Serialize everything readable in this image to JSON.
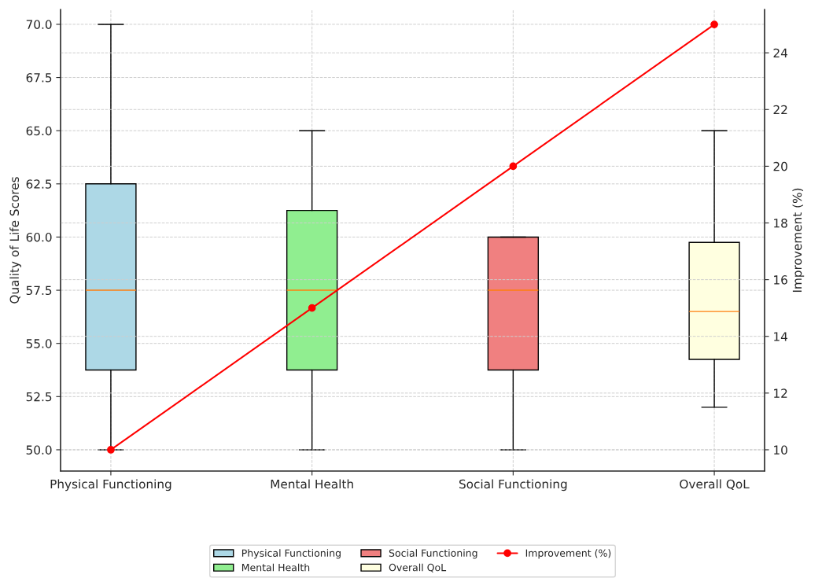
{
  "chart_data": {
    "type": "box",
    "categories": [
      "Physical Functioning",
      "Mental Health",
      "Social Functioning",
      "Overall QoL"
    ],
    "ylabel": "Quality of Life Scores",
    "y2label": "Improvement (%)",
    "ylim": [
      49.0,
      70.7
    ],
    "yticks": [
      {
        "value": 50,
        "label": "50.0"
      },
      52.5,
      {
        "value": 55,
        "label": "55.0"
      },
      57.5,
      {
        "value": 60,
        "label": "60.0"
      },
      62.5,
      {
        "value": 65,
        "label": "65.0"
      },
      67.5,
      {
        "value": 70,
        "label": "70.0"
      }
    ],
    "y2lim": [
      9.25,
      25.53
    ],
    "y2ticks": [
      10,
      12,
      14,
      16,
      18,
      20,
      22,
      24
    ],
    "grid": true,
    "legend": "bottom",
    "series": [
      {
        "type": "box",
        "name": "Physical Functioning",
        "color": "#add8e6",
        "boxes": [
          {
            "low": 50,
            "q1": 53.75,
            "median": 57.5,
            "q3": 62.5,
            "high": 70
          },
          null,
          null,
          null
        ]
      },
      {
        "type": "box",
        "name": "Mental Health",
        "color": "#90ee90",
        "boxes": [
          null,
          {
            "low": 50,
            "q1": 53.75,
            "median": 57.5,
            "q3": 61.25,
            "high": 65
          },
          null,
          null
        ]
      },
      {
        "type": "box",
        "name": "Social Functioning",
        "color": "#f08080",
        "boxes": [
          null,
          null,
          {
            "low": 50,
            "q1": 53.75,
            "median": 57.5,
            "q3": 60,
            "high": 60
          },
          null
        ]
      },
      {
        "type": "box",
        "name": "Overall QoL",
        "color": "#ffffe0",
        "boxes": [
          null,
          null,
          null,
          {
            "low": 52,
            "q1": 54.25,
            "median": 56.5,
            "q3": 59.75,
            "high": 65
          }
        ]
      },
      {
        "type": "line",
        "axis": "y2",
        "name": "Improvement (%)",
        "color": "#ff0000",
        "marker": "circle",
        "values": [
          10,
          15,
          20,
          25
        ]
      }
    ]
  }
}
